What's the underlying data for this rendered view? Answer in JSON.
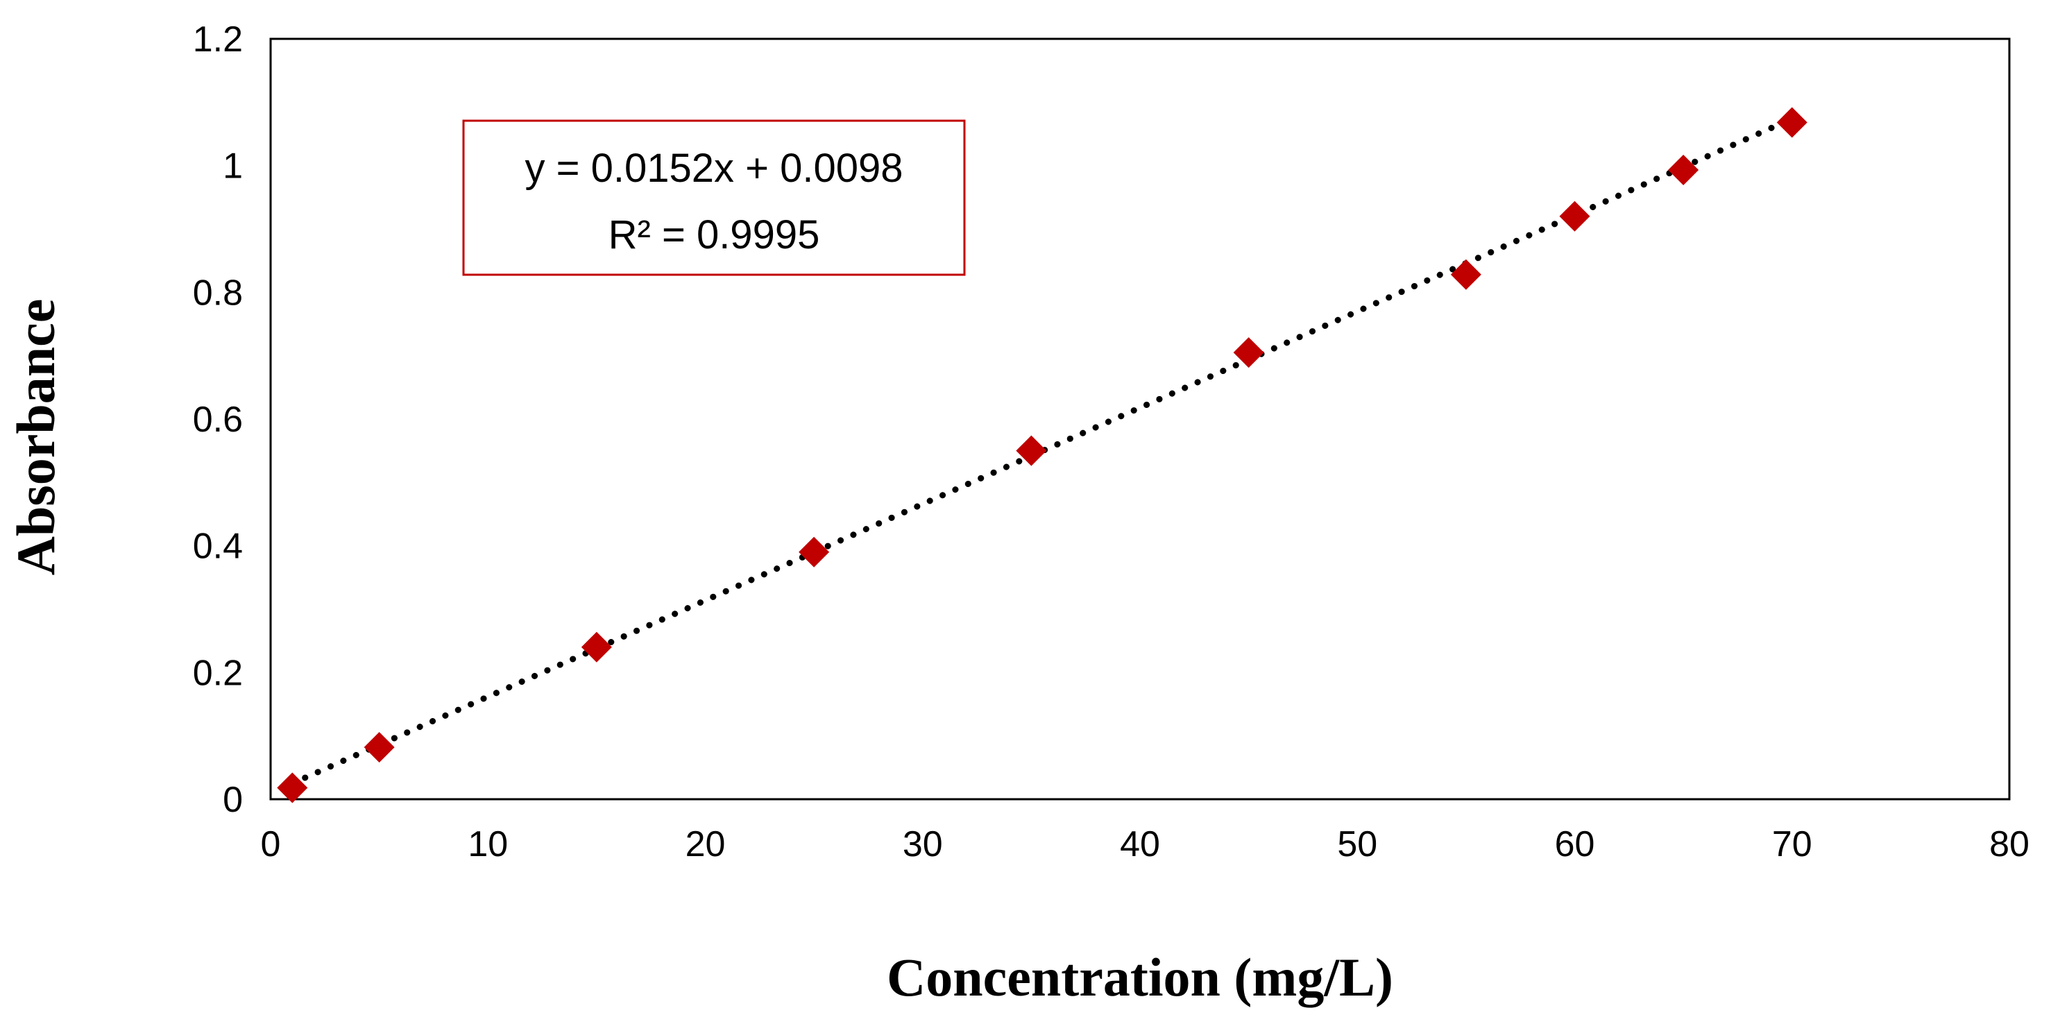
{
  "chart_data": {
    "type": "scatter",
    "title": "",
    "xlabel": "Concentration (mg/L)",
    "ylabel": "Absorbance",
    "xlim": [
      0,
      80
    ],
    "ylim": [
      0,
      1.2
    ],
    "xticks": [
      "0",
      "10",
      "20",
      "30",
      "40",
      "50",
      "60",
      "70",
      "80"
    ],
    "yticks": [
      "0",
      "0.2",
      "0.4",
      "0.6",
      "0.8",
      "1",
      "1.2"
    ],
    "grid": false,
    "series": [
      {
        "name": "Absorbance",
        "marker": "diamond",
        "color": "#c00000",
        "x": [
          1,
          5,
          15,
          25,
          35,
          45,
          55,
          60,
          65,
          70
        ],
        "y": [
          0.018,
          0.082,
          0.24,
          0.39,
          0.55,
          0.705,
          0.828,
          0.92,
          0.993,
          1.068
        ]
      }
    ],
    "trendline": {
      "type": "linear",
      "style": "dotted",
      "color": "#000000",
      "slope": 0.0152,
      "intercept": 0.0098,
      "x_range": [
        1,
        70
      ],
      "equation": "y = 0.0152x + 0.0098",
      "r_squared": "R² = 0.9995",
      "box_color": "#c00000"
    }
  }
}
